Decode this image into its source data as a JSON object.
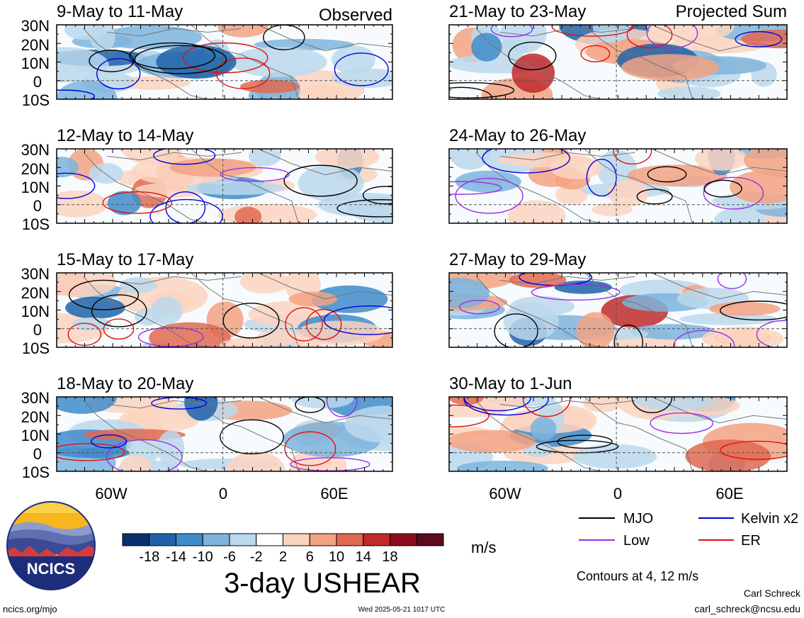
{
  "header": {
    "left_tag": "Observed",
    "right_tag": "Projected Sum"
  },
  "panels_left": [
    {
      "title": "9-May to 11-May"
    },
    {
      "title": "12-May to 14-May"
    },
    {
      "title": "15-May to 17-May"
    },
    {
      "title": "18-May to 20-May"
    }
  ],
  "panels_right": [
    {
      "title": "21-May to 23-May"
    },
    {
      "title": "24-May to 26-May"
    },
    {
      "title": "27-May to 29-May"
    },
    {
      "title": "30-May to 1-Jun"
    }
  ],
  "axes": {
    "lat_ticks": [
      "30N",
      "20N",
      "10N",
      "0",
      "10S"
    ],
    "lon_ticks": [
      "60W",
      "0",
      "60E"
    ]
  },
  "legend": {
    "items": [
      {
        "label": "MJO",
        "color": "#000000"
      },
      {
        "label": "Kelvin x2",
        "color": "#0000dd"
      },
      {
        "label": "Low",
        "color": "#9a2ee6"
      },
      {
        "label": "ER",
        "color": "#e01010"
      }
    ],
    "contour_note": "Contours at 4, 12 m/s"
  },
  "colorbar": {
    "tick_labels": [
      "-18",
      "-14",
      "-10",
      "-6",
      "-2",
      "2",
      "6",
      "10",
      "14",
      "18"
    ],
    "colors": [
      "#08306b",
      "#1f62a8",
      "#3f8ccb",
      "#7db4dd",
      "#bcd8ec",
      "#ffffff",
      "#fbd4c0",
      "#f3a283",
      "#e06951",
      "#c02a2a",
      "#8c0c1e",
      "#5e0a1a"
    ],
    "units": "m/s",
    "title": "3-day USHEAR"
  },
  "logo": {
    "text": "NCICS"
  },
  "footer": {
    "url": "ncics.org/mjo",
    "timestamp": "Wed 2025-05-21 1017 UTC",
    "author": "Carl Schreck",
    "email": "carl_schreck@ncsu.edu"
  }
}
